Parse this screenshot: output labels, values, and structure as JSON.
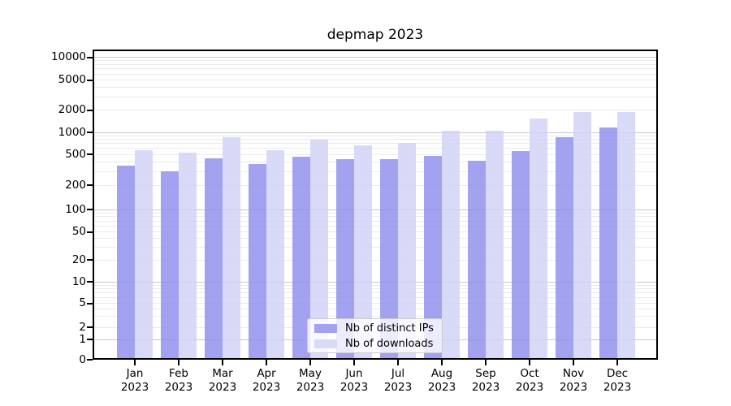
{
  "title": "depmap 2023",
  "chart_data": {
    "type": "bar",
    "title": "depmap 2023",
    "categories": [
      "Jan",
      "Feb",
      "Mar",
      "Apr",
      "May",
      "Jun",
      "Jul",
      "Aug",
      "Sep",
      "Oct",
      "Nov",
      "Dec"
    ],
    "x_tick_year": "2023",
    "series": [
      {
        "name": "Nb of distinct IPs",
        "color": "#a2a2f0",
        "values": [
          360,
          300,
          440,
          375,
          460,
          430,
          430,
          480,
          410,
          555,
          850,
          1160
        ]
      },
      {
        "name": "Nb of downloads",
        "color": "#d9d9f8",
        "values": [
          570,
          520,
          850,
          570,
          800,
          670,
          720,
          1050,
          1040,
          1550,
          1900,
          1900
        ]
      }
    ],
    "yscale": "symlog",
    "y_ticks": [
      0,
      1,
      2,
      5,
      10,
      20,
      50,
      100,
      200,
      500,
      1000,
      2000,
      5000,
      10000
    ],
    "ylim": [
      0,
      10000
    ],
    "grid": true,
    "grid_color_minor": "#ebebeb",
    "grid_color_major": "#c9c9c9",
    "legend_position": "lower center",
    "axis_color": "#000000"
  }
}
